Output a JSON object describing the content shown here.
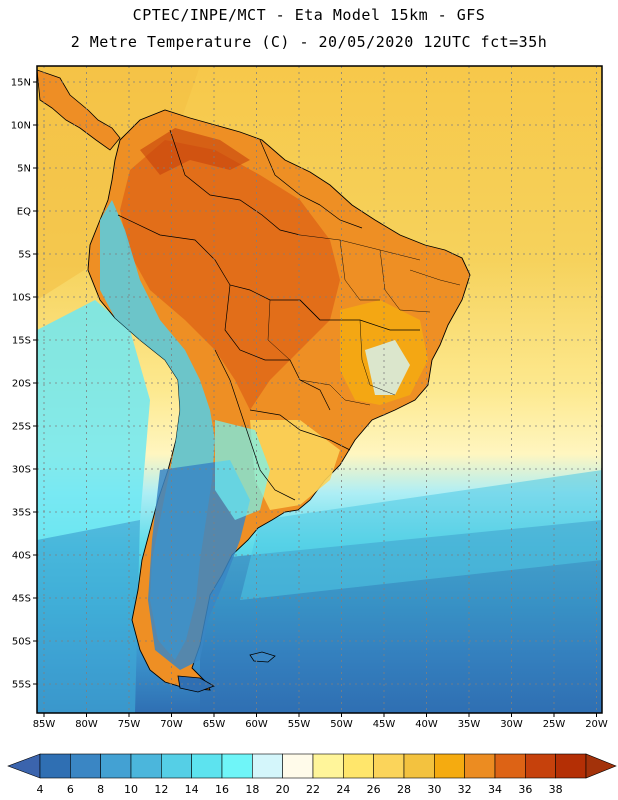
{
  "title_line1": "CPTEC/INPE/MCT -  Eta Model 15km - GFS",
  "title_line2": "2 Metre Temperature (C) - 20/05/2020 12UTC fct=35h",
  "lat_labels": [
    "15N",
    "10N",
    "5N",
    "EQ",
    "5S",
    "10S",
    "15S",
    "20S",
    "25S",
    "30S",
    "35S",
    "40S",
    "45S",
    "50S",
    "55S"
  ],
  "lon_labels": [
    "85W",
    "80W",
    "75W",
    "70W",
    "65W",
    "60W",
    "55W",
    "50W",
    "45W",
    "40W",
    "35W",
    "30W",
    "25W",
    "20W"
  ],
  "colorbar": {
    "labels": [
      "4",
      "6",
      "8",
      "10",
      "12",
      "14",
      "16",
      "18",
      "20",
      "22",
      "24",
      "26",
      "28",
      "30",
      "32",
      "34",
      "36",
      "38"
    ],
    "colors": [
      "#2f6fb3",
      "#3a86c4",
      "#43a1d3",
      "#4bb6dc",
      "#55cfe6",
      "#5de3ef",
      "#6ff5f8",
      "#d4f6fb",
      "#fffbea",
      "#fff59a",
      "#ffe66b",
      "#fbd45a",
      "#f3c23f",
      "#f5ab10",
      "#ec8c21",
      "#dd6315",
      "#c6410c",
      "#b42f05"
    ],
    "under_color": "#3b64ad",
    "over_color": "#a3320a"
  }
}
